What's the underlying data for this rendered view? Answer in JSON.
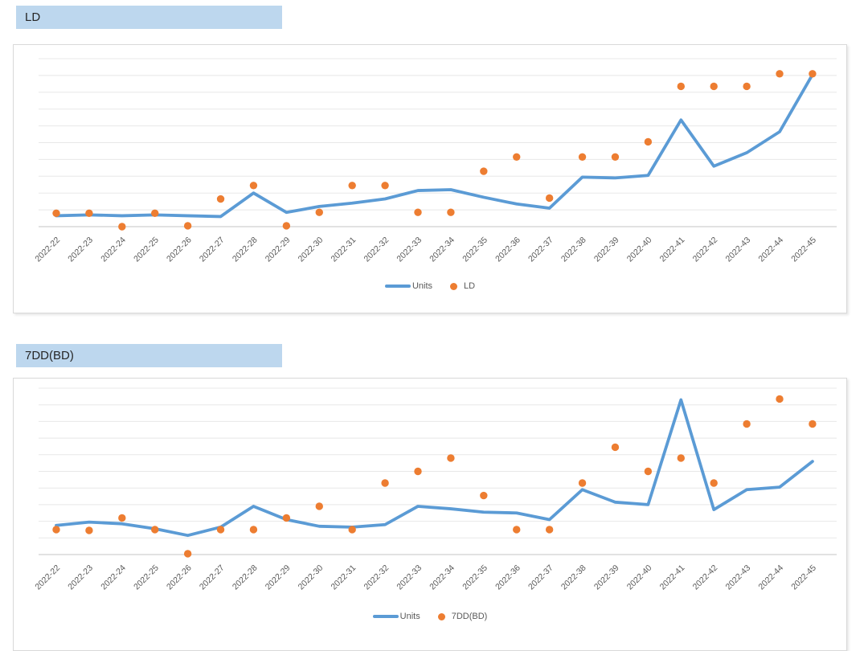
{
  "colors": {
    "banner_background": "#BDD7EE",
    "banner_text": "#262626",
    "line_series": "#5B9BD5",
    "marker_series": "#ED7D31",
    "gridline": "#E8E8E8",
    "axis_line": "#C6C6C6",
    "tick_text": "#595959",
    "legend_text": "#595959",
    "card_border": "#D9D9D9"
  },
  "chart_data": [
    {
      "type": "line",
      "title": "LD",
      "categories": [
        "2022-22",
        "2022-23",
        "2022-24",
        "2022-25",
        "2022-26",
        "2022-27",
        "2022-28",
        "2022-29",
        "2022-30",
        "2022-31",
        "2022-32",
        "2022-33",
        "2022-34",
        "2022-35",
        "2022-36",
        "2022-37",
        "2022-38",
        "2022-39",
        "2022-40",
        "2022-41",
        "2022-42",
        "2022-43",
        "2022-44",
        "2022-45"
      ],
      "series": [
        {
          "name": "Units",
          "kind": "line",
          "color": "#5B9BD5",
          "values": [
            0.65,
            0.7,
            0.65,
            0.7,
            0.65,
            0.6,
            2.0,
            0.85,
            1.2,
            1.4,
            1.65,
            2.15,
            2.2,
            1.75,
            1.35,
            1.1,
            2.95,
            2.9,
            3.05,
            6.35,
            3.6,
            4.4,
            5.65,
            9.05
          ]
        },
        {
          "name": "LD",
          "kind": "scatter",
          "color": "#ED7D31",
          "values": [
            0.8,
            0.8,
            0.0,
            0.8,
            0.05,
            1.65,
            2.45,
            0.05,
            0.85,
            2.45,
            2.45,
            0.85,
            0.85,
            3.3,
            4.15,
            1.7,
            4.15,
            4.15,
            5.05,
            8.35,
            8.35,
            8.35,
            9.1,
            9.1
          ]
        }
      ],
      "ylim": [
        0,
        10
      ],
      "y_axis_labels": "hidden",
      "grid": true,
      "gridline_count": 11,
      "legend_position": "bottom",
      "x_tick_rotation_deg": 45
    },
    {
      "type": "line",
      "title": "7DD(BD)",
      "categories": [
        "2022-22",
        "2022-23",
        "2022-24",
        "2022-25",
        "2022-26",
        "2022-27",
        "2022-28",
        "2022-29",
        "2022-30",
        "2022-31",
        "2022-32",
        "2022-33",
        "2022-34",
        "2022-35",
        "2022-36",
        "2022-37",
        "2022-38",
        "2022-39",
        "2022-40",
        "2022-41",
        "2022-42",
        "2022-43",
        "2022-44",
        "2022-45"
      ],
      "series": [
        {
          "name": "Units",
          "kind": "line",
          "color": "#5B9BD5",
          "values": [
            1.75,
            1.95,
            1.85,
            1.55,
            1.15,
            1.65,
            2.9,
            2.1,
            1.7,
            1.65,
            1.8,
            2.9,
            2.75,
            2.55,
            2.5,
            2.1,
            3.9,
            3.15,
            3.0,
            9.3,
            2.7,
            3.9,
            4.05,
            5.6
          ]
        },
        {
          "name": "7DD(BD)",
          "kind": "scatter",
          "color": "#ED7D31",
          "values": [
            1.5,
            1.45,
            2.2,
            1.5,
            0.05,
            1.5,
            1.5,
            2.2,
            2.9,
            1.5,
            4.3,
            5.0,
            5.8,
            3.55,
            1.5,
            1.5,
            4.3,
            6.45,
            5.0,
            5.8,
            4.3,
            7.85,
            9.35,
            7.85
          ]
        }
      ],
      "ylim": [
        0,
        10
      ],
      "y_axis_labels": "hidden",
      "grid": true,
      "gridline_count": 11,
      "legend_position": "bottom",
      "x_tick_rotation_deg": 45
    }
  ]
}
